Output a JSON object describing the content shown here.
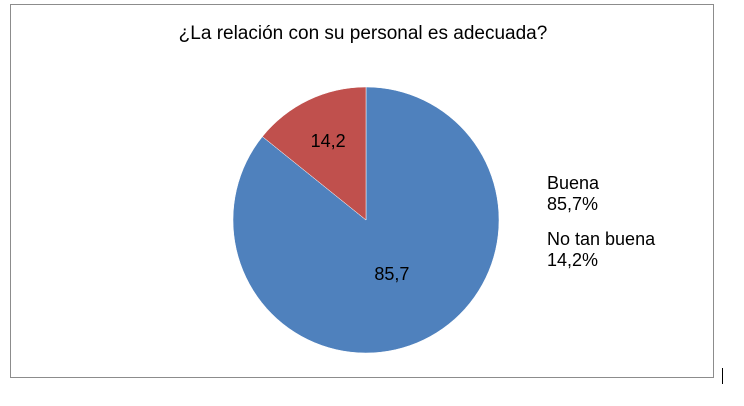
{
  "chart_data": {
    "type": "pie",
    "title": "¿La relación con su personal es adecuada?",
    "categories": [
      "Buena",
      "No tan buena"
    ],
    "values": [
      85.7,
      14.2
    ],
    "data_labels": [
      "85,7",
      "14,2"
    ],
    "legend_labels": [
      "Buena",
      "No tan buena"
    ],
    "legend_percents": [
      "85,7%",
      "14,2%"
    ],
    "colors": [
      "#4f81bd",
      "#c0504d"
    ],
    "legend_position": "right"
  }
}
